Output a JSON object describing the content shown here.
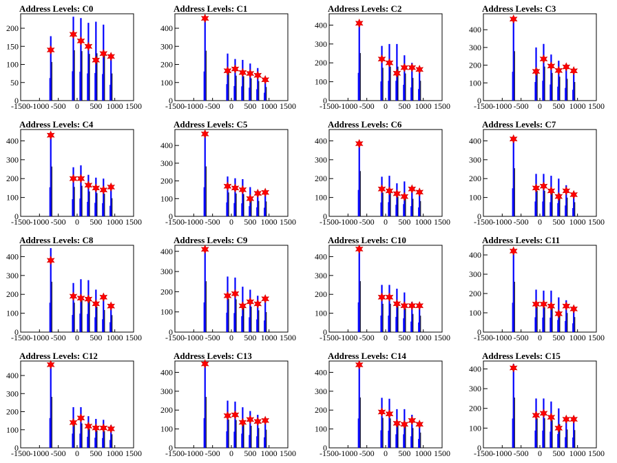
{
  "colors": {
    "histogram": "#0000ff",
    "marker": "#ff0000",
    "axis": "#000000"
  },
  "chart_data": [
    {
      "type": "bar",
      "title": "Address Levels: C0",
      "xlim": [
        -1500,
        1500
      ],
      "ylim": [
        0,
        240
      ],
      "yticks": [
        0,
        50,
        100,
        150,
        200
      ],
      "xticks": [
        -1500,
        -1000,
        -500,
        0,
        500,
        1000,
        1500
      ],
      "peaks": [
        {
          "x": -700,
          "height": 178,
          "marker": 140
        },
        {
          "x": -100,
          "height": 232,
          "marker": 183
        },
        {
          "x": 100,
          "height": 228,
          "marker": 165
        },
        {
          "x": 300,
          "height": 215,
          "marker": 150
        },
        {
          "x": 500,
          "height": 218,
          "marker": 112
        },
        {
          "x": 700,
          "height": 210,
          "marker": 130
        },
        {
          "x": 900,
          "height": 125,
          "marker": 122
        }
      ]
    },
    {
      "type": "bar",
      "title": "Address Levels: C1",
      "xlim": [
        -1500,
        1500
      ],
      "ylim": [
        0,
        480
      ],
      "yticks": [
        0,
        100,
        200,
        300,
        400
      ],
      "xticks": [
        -1500,
        -1000,
        -500,
        0,
        500,
        1000,
        1500
      ],
      "peaks": [
        {
          "x": -700,
          "height": 460,
          "marker": 455
        },
        {
          "x": -100,
          "height": 260,
          "marker": 165
        },
        {
          "x": 100,
          "height": 230,
          "marker": 175
        },
        {
          "x": 300,
          "height": 225,
          "marker": 155
        },
        {
          "x": 500,
          "height": 205,
          "marker": 150
        },
        {
          "x": 700,
          "height": 180,
          "marker": 140
        },
        {
          "x": 900,
          "height": 125,
          "marker": 115
        }
      ]
    },
    {
      "type": "bar",
      "title": "Address Levels: C2",
      "xlim": [
        -1500,
        1500
      ],
      "ylim": [
        0,
        460
      ],
      "yticks": [
        0,
        100,
        200,
        300,
        400
      ],
      "xticks": [
        -1500,
        -1000,
        -500,
        0,
        500,
        1000,
        1500
      ],
      "peaks": [
        {
          "x": -700,
          "height": 420,
          "marker": 410
        },
        {
          "x": -100,
          "height": 290,
          "marker": 220
        },
        {
          "x": 100,
          "height": 300,
          "marker": 200
        },
        {
          "x": 300,
          "height": 300,
          "marker": 145
        },
        {
          "x": 500,
          "height": 240,
          "marker": 175
        },
        {
          "x": 700,
          "height": 200,
          "marker": 175
        },
        {
          "x": 900,
          "height": 175,
          "marker": 165
        }
      ]
    },
    {
      "type": "bar",
      "title": "Address Levels: C3",
      "xlim": [
        -1500,
        1500
      ],
      "ylim": [
        0,
        490
      ],
      "yticks": [
        0,
        100,
        200,
        300,
        400
      ],
      "xticks": [
        -1500,
        -1000,
        -500,
        0,
        500,
        1000,
        1500
      ],
      "peaks": [
        {
          "x": -700,
          "height": 465,
          "marker": 460
        },
        {
          "x": -100,
          "height": 300,
          "marker": 165
        },
        {
          "x": 100,
          "height": 320,
          "marker": 235
        },
        {
          "x": 300,
          "height": 260,
          "marker": 195
        },
        {
          "x": 500,
          "height": 225,
          "marker": 170
        },
        {
          "x": 700,
          "height": 205,
          "marker": 190
        },
        {
          "x": 900,
          "height": 175,
          "marker": 168
        }
      ]
    },
    {
      "type": "bar",
      "title": "Address Levels: C4",
      "xlim": [
        -1500,
        1500
      ],
      "ylim": [
        0,
        460
      ],
      "yticks": [
        0,
        100,
        200,
        300,
        400
      ],
      "xticks": [
        -1500,
        -1000,
        -500,
        0,
        500,
        1000,
        1500
      ],
      "peaks": [
        {
          "x": -700,
          "height": 440,
          "marker": 430
        },
        {
          "x": -100,
          "height": 260,
          "marker": 200
        },
        {
          "x": 100,
          "height": 270,
          "marker": 200
        },
        {
          "x": 300,
          "height": 220,
          "marker": 165
        },
        {
          "x": 500,
          "height": 205,
          "marker": 150
        },
        {
          "x": 700,
          "height": 200,
          "marker": 140
        },
        {
          "x": 900,
          "height": 160,
          "marker": 155
        }
      ]
    },
    {
      "type": "bar",
      "title": "Address Levels: C5",
      "xlim": [
        -1500,
        1500
      ],
      "ylim": [
        0,
        490
      ],
      "yticks": [
        0,
        100,
        200,
        300,
        400
      ],
      "xticks": [
        -1500,
        -1000,
        -500,
        0,
        500,
        1000,
        1500
      ],
      "peaks": [
        {
          "x": -700,
          "height": 470,
          "marker": 465
        },
        {
          "x": -100,
          "height": 225,
          "marker": 170
        },
        {
          "x": 100,
          "height": 215,
          "marker": 160
        },
        {
          "x": 300,
          "height": 210,
          "marker": 150
        },
        {
          "x": 500,
          "height": 165,
          "marker": 100
        },
        {
          "x": 700,
          "height": 145,
          "marker": 130
        },
        {
          "x": 900,
          "height": 140,
          "marker": 135
        }
      ]
    },
    {
      "type": "bar",
      "title": "Address Levels: C6",
      "xlim": [
        -1500,
        1500
      ],
      "ylim": [
        0,
        460
      ],
      "yticks": [
        0,
        100,
        200,
        300,
        400
      ],
      "xticks": [
        -1500,
        -1000,
        -500,
        0,
        500,
        1000,
        1500
      ],
      "peaks": [
        {
          "x": -700,
          "height": 400,
          "marker": 385
        },
        {
          "x": -100,
          "height": 210,
          "marker": 145
        },
        {
          "x": 100,
          "height": 215,
          "marker": 135
        },
        {
          "x": 300,
          "height": 175,
          "marker": 120
        },
        {
          "x": 500,
          "height": 185,
          "marker": 105
        },
        {
          "x": 700,
          "height": 155,
          "marker": 145
        },
        {
          "x": 900,
          "height": 135,
          "marker": 128
        }
      ]
    },
    {
      "type": "bar",
      "title": "Address Levels: C7",
      "xlim": [
        -1500,
        1500
      ],
      "ylim": [
        0,
        460
      ],
      "yticks": [
        0,
        100,
        200,
        300,
        400
      ],
      "xticks": [
        -1500,
        -1000,
        -500,
        0,
        500,
        1000,
        1500
      ],
      "peaks": [
        {
          "x": -700,
          "height": 425,
          "marker": 410
        },
        {
          "x": -100,
          "height": 225,
          "marker": 150
        },
        {
          "x": 100,
          "height": 225,
          "marker": 160
        },
        {
          "x": 300,
          "height": 215,
          "marker": 135
        },
        {
          "x": 500,
          "height": 200,
          "marker": 105
        },
        {
          "x": 700,
          "height": 165,
          "marker": 135
        },
        {
          "x": 900,
          "height": 125,
          "marker": 115
        }
      ]
    },
    {
      "type": "bar",
      "title": "Address Levels: C8",
      "xlim": [
        -1500,
        1500
      ],
      "ylim": [
        0,
        460
      ],
      "yticks": [
        0,
        100,
        200,
        300,
        400
      ],
      "xticks": [
        -1500,
        -1000,
        -500,
        0,
        500,
        1000,
        1500
      ],
      "peaks": [
        {
          "x": -700,
          "height": 445,
          "marker": 380
        },
        {
          "x": -100,
          "height": 260,
          "marker": 190
        },
        {
          "x": 100,
          "height": 280,
          "marker": 180
        },
        {
          "x": 300,
          "height": 275,
          "marker": 175
        },
        {
          "x": 500,
          "height": 225,
          "marker": 150
        },
        {
          "x": 700,
          "height": 195,
          "marker": 185
        },
        {
          "x": 900,
          "height": 150,
          "marker": 138
        }
      ]
    },
    {
      "type": "bar",
      "title": "Address Levels: C9",
      "xlim": [
        -1500,
        1500
      ],
      "ylim": [
        0,
        430
      ],
      "yticks": [
        0,
        100,
        200,
        300,
        400
      ],
      "xticks": [
        -1500,
        -1000,
        -500,
        0,
        500,
        1000,
        1500
      ],
      "peaks": [
        {
          "x": -700,
          "height": 420,
          "marker": 410
        },
        {
          "x": -100,
          "height": 275,
          "marker": 180
        },
        {
          "x": 100,
          "height": 270,
          "marker": 190
        },
        {
          "x": 300,
          "height": 225,
          "marker": 130
        },
        {
          "x": 500,
          "height": 210,
          "marker": 150
        },
        {
          "x": 700,
          "height": 180,
          "marker": 140
        },
        {
          "x": 900,
          "height": 165,
          "marker": 165
        }
      ]
    },
    {
      "type": "bar",
      "title": "Address Levels: C10",
      "xlim": [
        -1500,
        1500
      ],
      "ylim": [
        0,
        460
      ],
      "yticks": [
        0,
        100,
        200,
        300,
        400
      ],
      "xticks": [
        -1500,
        -1000,
        -500,
        0,
        500,
        1000,
        1500
      ],
      "peaks": [
        {
          "x": -700,
          "height": 450,
          "marker": 440
        },
        {
          "x": -100,
          "height": 250,
          "marker": 185
        },
        {
          "x": 100,
          "height": 250,
          "marker": 185
        },
        {
          "x": 300,
          "height": 230,
          "marker": 150
        },
        {
          "x": 500,
          "height": 210,
          "marker": 140
        },
        {
          "x": 700,
          "height": 160,
          "marker": 140
        },
        {
          "x": 900,
          "height": 145,
          "marker": 140
        }
      ]
    },
    {
      "type": "bar",
      "title": "Address Levels: C11",
      "xlim": [
        -1500,
        1500
      ],
      "ylim": [
        0,
        450
      ],
      "yticks": [
        0,
        100,
        200,
        300,
        400
      ],
      "xticks": [
        -1500,
        -1000,
        -500,
        0,
        500,
        1000,
        1500
      ],
      "peaks": [
        {
          "x": -700,
          "height": 435,
          "marker": 420
        },
        {
          "x": -100,
          "height": 220,
          "marker": 145
        },
        {
          "x": 100,
          "height": 215,
          "marker": 145
        },
        {
          "x": 300,
          "height": 215,
          "marker": 135
        },
        {
          "x": 500,
          "height": 180,
          "marker": 95
        },
        {
          "x": 700,
          "height": 165,
          "marker": 135
        },
        {
          "x": 900,
          "height": 130,
          "marker": 120
        }
      ]
    },
    {
      "type": "bar",
      "title": "Address Levels: C12",
      "xlim": [
        -1500,
        1500
      ],
      "ylim": [
        0,
        480
      ],
      "yticks": [
        0,
        100,
        200,
        300,
        400
      ],
      "xticks": [
        -1500,
        -1000,
        -500,
        0,
        500,
        1000,
        1500
      ],
      "peaks": [
        {
          "x": -700,
          "height": 470,
          "marker": 460
        },
        {
          "x": -100,
          "height": 225,
          "marker": 140
        },
        {
          "x": 100,
          "height": 225,
          "marker": 165
        },
        {
          "x": 300,
          "height": 175,
          "marker": 120
        },
        {
          "x": 500,
          "height": 160,
          "marker": 110
        },
        {
          "x": 700,
          "height": 155,
          "marker": 110
        },
        {
          "x": 900,
          "height": 125,
          "marker": 105
        }
      ]
    },
    {
      "type": "bar",
      "title": "Address Levels: C13",
      "xlim": [
        -1500,
        1500
      ],
      "ylim": [
        0,
        460
      ],
      "yticks": [
        0,
        100,
        200,
        300,
        400
      ],
      "xticks": [
        -1500,
        -1000,
        -500,
        0,
        500,
        1000,
        1500
      ],
      "peaks": [
        {
          "x": -700,
          "height": 450,
          "marker": 445
        },
        {
          "x": -100,
          "height": 250,
          "marker": 170
        },
        {
          "x": 100,
          "height": 245,
          "marker": 175
        },
        {
          "x": 300,
          "height": 215,
          "marker": 135
        },
        {
          "x": 500,
          "height": 195,
          "marker": 150
        },
        {
          "x": 700,
          "height": 175,
          "marker": 140
        },
        {
          "x": 900,
          "height": 160,
          "marker": 145
        }
      ]
    },
    {
      "type": "bar",
      "title": "Address Levels: C14",
      "xlim": [
        -1500,
        1500
      ],
      "ylim": [
        0,
        460
      ],
      "yticks": [
        0,
        100,
        200,
        300,
        400
      ],
      "xticks": [
        -1500,
        -1000,
        -500,
        0,
        500,
        1000,
        1500
      ],
      "peaks": [
        {
          "x": -700,
          "height": 445,
          "marker": 440
        },
        {
          "x": -100,
          "height": 265,
          "marker": 190
        },
        {
          "x": 100,
          "height": 260,
          "marker": 180
        },
        {
          "x": 300,
          "height": 205,
          "marker": 130
        },
        {
          "x": 500,
          "height": 205,
          "marker": 125
        },
        {
          "x": 700,
          "height": 175,
          "marker": 145
        },
        {
          "x": 900,
          "height": 135,
          "marker": 125
        }
      ]
    },
    {
      "type": "bar",
      "title": "Address Levels: C15",
      "xlim": [
        -1500,
        1500
      ],
      "ylim": [
        0,
        440
      ],
      "yticks": [
        0,
        100,
        200,
        300,
        400
      ],
      "xticks": [
        -1500,
        -1000,
        -500,
        0,
        500,
        1000,
        1500
      ],
      "peaks": [
        {
          "x": -700,
          "height": 425,
          "marker": 405
        },
        {
          "x": -100,
          "height": 250,
          "marker": 165
        },
        {
          "x": 100,
          "height": 250,
          "marker": 175
        },
        {
          "x": 300,
          "height": 235,
          "marker": 155
        },
        {
          "x": 500,
          "height": 200,
          "marker": 100
        },
        {
          "x": 700,
          "height": 155,
          "marker": 145
        },
        {
          "x": 900,
          "height": 150,
          "marker": 145
        }
      ]
    }
  ]
}
